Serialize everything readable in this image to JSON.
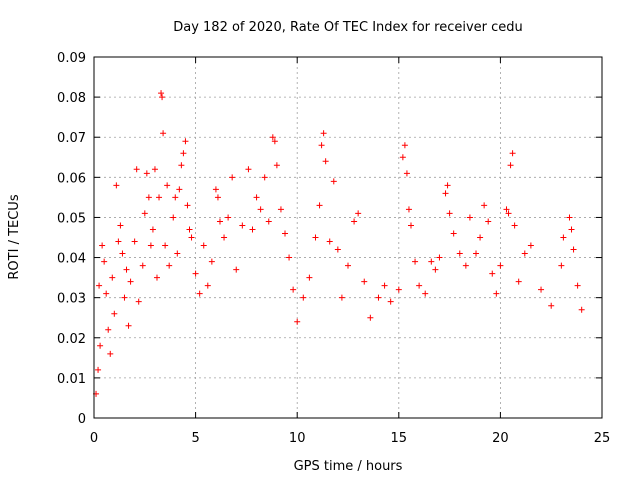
{
  "chart_data": {
    "type": "scatter",
    "title": "Day 182 of 2020, Rate Of TEC Index for receiver cedu",
    "xlabel": "GPS time / hours",
    "ylabel": "ROTI / TECUs",
    "xlim": [
      0,
      25
    ],
    "ylim": [
      0,
      0.09
    ],
    "xticks": [
      "0",
      "5",
      "10",
      "15",
      "20",
      "25"
    ],
    "yticks": [
      "0",
      "0.01",
      "0.02",
      "0.03",
      "0.04",
      "0.05",
      "0.06",
      "0.07",
      "0.08",
      "0.09"
    ],
    "grid": true,
    "marker": "+",
    "color": "#ff0000",
    "points": [
      [
        0.1,
        0.006
      ],
      [
        0.2,
        0.012
      ],
      [
        0.25,
        0.033
      ],
      [
        0.3,
        0.018
      ],
      [
        0.4,
        0.043
      ],
      [
        0.5,
        0.039
      ],
      [
        0.6,
        0.031
      ],
      [
        0.7,
        0.022
      ],
      [
        0.8,
        0.016
      ],
      [
        0.9,
        0.035
      ],
      [
        1.0,
        0.026
      ],
      [
        1.1,
        0.058
      ],
      [
        1.2,
        0.044
      ],
      [
        1.3,
        0.048
      ],
      [
        1.4,
        0.041
      ],
      [
        1.5,
        0.03
      ],
      [
        1.6,
        0.037
      ],
      [
        1.7,
        0.023
      ],
      [
        1.8,
        0.034
      ],
      [
        2.0,
        0.044
      ],
      [
        2.1,
        0.062
      ],
      [
        2.2,
        0.029
      ],
      [
        2.4,
        0.038
      ],
      [
        2.5,
        0.051
      ],
      [
        2.6,
        0.061
      ],
      [
        2.7,
        0.055
      ],
      [
        2.8,
        0.043
      ],
      [
        2.9,
        0.047
      ],
      [
        3.0,
        0.062
      ],
      [
        3.1,
        0.035
      ],
      [
        3.2,
        0.055
      ],
      [
        3.3,
        0.081
      ],
      [
        3.35,
        0.08
      ],
      [
        3.4,
        0.071
      ],
      [
        3.5,
        0.043
      ],
      [
        3.6,
        0.058
      ],
      [
        3.7,
        0.038
      ],
      [
        3.9,
        0.05
      ],
      [
        4.0,
        0.055
      ],
      [
        4.1,
        0.041
      ],
      [
        4.2,
        0.057
      ],
      [
        4.3,
        0.063
      ],
      [
        4.4,
        0.066
      ],
      [
        4.5,
        0.069
      ],
      [
        4.6,
        0.053
      ],
      [
        4.7,
        0.047
      ],
      [
        4.8,
        0.045
      ],
      [
        5.0,
        0.036
      ],
      [
        5.2,
        0.031
      ],
      [
        5.4,
        0.043
      ],
      [
        5.6,
        0.033
      ],
      [
        5.8,
        0.039
      ],
      [
        6.0,
        0.057
      ],
      [
        6.1,
        0.055
      ],
      [
        6.2,
        0.049
      ],
      [
        6.4,
        0.045
      ],
      [
        6.6,
        0.05
      ],
      [
        6.8,
        0.06
      ],
      [
        7.0,
        0.037
      ],
      [
        7.3,
        0.048
      ],
      [
        7.6,
        0.062
      ],
      [
        7.8,
        0.047
      ],
      [
        8.0,
        0.055
      ],
      [
        8.2,
        0.052
      ],
      [
        8.4,
        0.06
      ],
      [
        8.6,
        0.049
      ],
      [
        8.8,
        0.07
      ],
      [
        8.9,
        0.069
      ],
      [
        9.0,
        0.063
      ],
      [
        9.2,
        0.052
      ],
      [
        9.4,
        0.046
      ],
      [
        9.6,
        0.04
      ],
      [
        9.8,
        0.032
      ],
      [
        10.0,
        0.024
      ],
      [
        10.3,
        0.03
      ],
      [
        10.6,
        0.035
      ],
      [
        10.9,
        0.045
      ],
      [
        11.1,
        0.053
      ],
      [
        11.2,
        0.068
      ],
      [
        11.3,
        0.071
      ],
      [
        11.4,
        0.064
      ],
      [
        11.6,
        0.044
      ],
      [
        11.8,
        0.059
      ],
      [
        12.0,
        0.042
      ],
      [
        12.2,
        0.03
      ],
      [
        12.5,
        0.038
      ],
      [
        12.8,
        0.049
      ],
      [
        13.0,
        0.051
      ],
      [
        13.3,
        0.034
      ],
      [
        13.6,
        0.025
      ],
      [
        14.0,
        0.03
      ],
      [
        14.3,
        0.033
      ],
      [
        14.6,
        0.029
      ],
      [
        15.0,
        0.032
      ],
      [
        15.2,
        0.065
      ],
      [
        15.3,
        0.068
      ],
      [
        15.4,
        0.061
      ],
      [
        15.5,
        0.052
      ],
      [
        15.6,
        0.048
      ],
      [
        15.8,
        0.039
      ],
      [
        16.0,
        0.033
      ],
      [
        16.3,
        0.031
      ],
      [
        16.6,
        0.039
      ],
      [
        16.8,
        0.037
      ],
      [
        17.0,
        0.04
      ],
      [
        17.3,
        0.056
      ],
      [
        17.4,
        0.058
      ],
      [
        17.5,
        0.051
      ],
      [
        17.7,
        0.046
      ],
      [
        18.0,
        0.041
      ],
      [
        18.3,
        0.038
      ],
      [
        18.5,
        0.05
      ],
      [
        18.8,
        0.041
      ],
      [
        19.0,
        0.045
      ],
      [
        19.2,
        0.053
      ],
      [
        19.4,
        0.049
      ],
      [
        19.6,
        0.036
      ],
      [
        19.8,
        0.031
      ],
      [
        20.0,
        0.038
      ],
      [
        20.3,
        0.052
      ],
      [
        20.4,
        0.051
      ],
      [
        20.5,
        0.063
      ],
      [
        20.6,
        0.066
      ],
      [
        20.7,
        0.048
      ],
      [
        20.9,
        0.034
      ],
      [
        21.2,
        0.041
      ],
      [
        21.5,
        0.043
      ],
      [
        22.0,
        0.032
      ],
      [
        22.5,
        0.028
      ],
      [
        23.0,
        0.038
      ],
      [
        23.1,
        0.045
      ],
      [
        23.4,
        0.05
      ],
      [
        23.5,
        0.047
      ],
      [
        23.6,
        0.042
      ],
      [
        23.8,
        0.033
      ],
      [
        24.0,
        0.027
      ]
    ]
  }
}
